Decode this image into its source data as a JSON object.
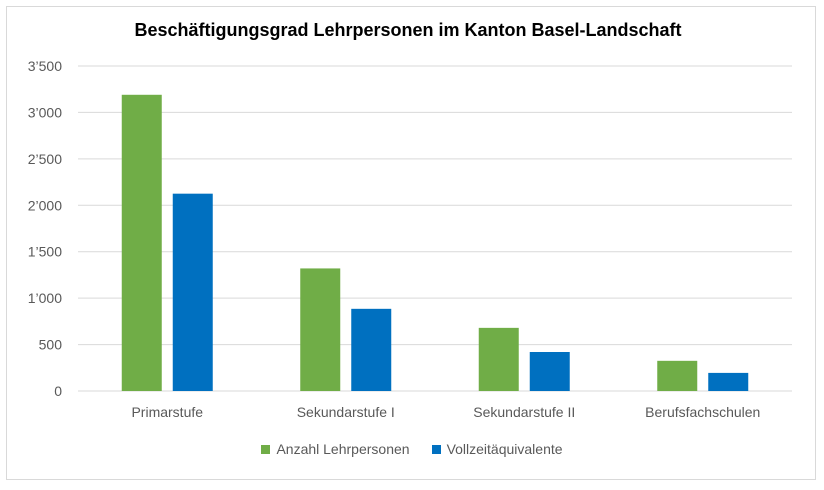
{
  "chart_data": {
    "type": "bar",
    "title": "Beschäftigungsgrad Lehrpersonen im Kanton Basel-Landschaft",
    "xlabel": "",
    "ylabel": "",
    "categories": [
      "Primarstufe",
      "Sekundarstufe I",
      "Sekundarstufe II",
      "Berufsfachschulen"
    ],
    "series": [
      {
        "name": "Anzahl Lehrpersonen",
        "color": "#70ad47",
        "values": [
          3190,
          1320,
          680,
          325
        ]
      },
      {
        "name": "Vollzeitäquivalente",
        "color": "#0070c0",
        "values": [
          2125,
          885,
          420,
          195
        ]
      }
    ],
    "ylim": [
      0,
      3500
    ],
    "yticks": [
      {
        "value": 0,
        "label": "0"
      },
      {
        "value": 500,
        "label": "500"
      },
      {
        "value": 1000,
        "label": "1’000"
      },
      {
        "value": 1500,
        "label": "1’500"
      },
      {
        "value": 2000,
        "label": "2’000"
      },
      {
        "value": 2500,
        "label": "2’500"
      },
      {
        "value": 3000,
        "label": "3’000"
      },
      {
        "value": 3500,
        "label": "3’500"
      }
    ],
    "grid": true,
    "legend_position": "bottom"
  }
}
